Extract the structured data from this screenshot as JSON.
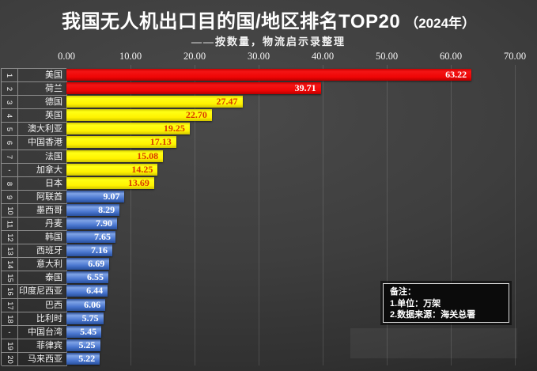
{
  "title": {
    "main": "我国无人机出口目的国/地区排名TOP20",
    "suffix": "（2024年）"
  },
  "subtitle": "——按数量，物流启示录整理",
  "chart_data": {
    "type": "bar",
    "orientation": "horizontal",
    "title": "我国无人机出口目的国/地区排名TOP20（2024年）",
    "subtitle": "——按数量，物流启示录整理",
    "value_unit": "万架",
    "xlim": [
      0,
      70
    ],
    "x_ticks": [
      0,
      10,
      20,
      30,
      40,
      50,
      60,
      70
    ],
    "x_tick_labels": [
      "0.00",
      "10.00",
      "20.00",
      "30.00",
      "40.00",
      "50.00",
      "60.00",
      "70.00"
    ],
    "grid": true,
    "legend": false,
    "rows": [
      {
        "rank": "1",
        "label": "美国",
        "value": 63.22,
        "group": "red"
      },
      {
        "rank": "2",
        "label": "荷兰",
        "value": 39.71,
        "group": "red"
      },
      {
        "rank": "3",
        "label": "德国",
        "value": 27.47,
        "group": "yellow"
      },
      {
        "rank": "4",
        "label": "英国",
        "value": 22.7,
        "group": "yellow"
      },
      {
        "rank": "5",
        "label": "澳大利亚",
        "value": 19.25,
        "group": "yellow"
      },
      {
        "rank": "6",
        "label": "中国香港",
        "value": 17.13,
        "group": "yellow"
      },
      {
        "rank": "7",
        "label": "法国",
        "value": 15.08,
        "group": "yellow"
      },
      {
        "rank": "-",
        "label": "加拿大",
        "value": 14.25,
        "group": "yellow"
      },
      {
        "rank": "8",
        "label": "日本",
        "value": 13.69,
        "group": "yellow"
      },
      {
        "rank": "9",
        "label": "阿联酋",
        "value": 9.07,
        "group": "blue"
      },
      {
        "rank": "10",
        "label": "墨西哥",
        "value": 8.29,
        "group": "blue"
      },
      {
        "rank": "11",
        "label": "丹麦",
        "value": 7.9,
        "group": "blue"
      },
      {
        "rank": "12",
        "label": "韩国",
        "value": 7.65,
        "group": "blue"
      },
      {
        "rank": "13",
        "label": "西班牙",
        "value": 7.16,
        "group": "blue"
      },
      {
        "rank": "14",
        "label": "意大利",
        "value": 6.69,
        "group": "blue"
      },
      {
        "rank": "15",
        "label": "泰国",
        "value": 6.55,
        "group": "blue"
      },
      {
        "rank": "16",
        "label": "印度尼西亚",
        "value": 6.44,
        "group": "blue"
      },
      {
        "rank": "17",
        "label": "巴西",
        "value": 6.06,
        "group": "blue"
      },
      {
        "rank": "18",
        "label": "比利时",
        "value": 5.75,
        "group": "blue"
      },
      {
        "rank": "-",
        "label": "中国台湾",
        "value": 5.45,
        "group": "blue"
      },
      {
        "rank": "19",
        "label": "菲律宾",
        "value": 5.25,
        "group": "blue"
      },
      {
        "rank": "20",
        "label": "马来西亚",
        "value": 5.22,
        "group": "blue"
      }
    ]
  },
  "note": {
    "lines": [
      "备注：",
      "1.单位：万架",
      "2.数据来源：海关总署"
    ]
  },
  "colors": {
    "bar_red": "#ee0000",
    "bar_yellow": "#fff200",
    "bar_blue": "#4a76cf",
    "value_on_yellow": "#d83a00",
    "value_on_red": "#ffffff",
    "value_on_blue": "#ffffff",
    "background": "#3e3e3e",
    "cell_border": "#8d8d8d",
    "text": "#ffffff"
  }
}
